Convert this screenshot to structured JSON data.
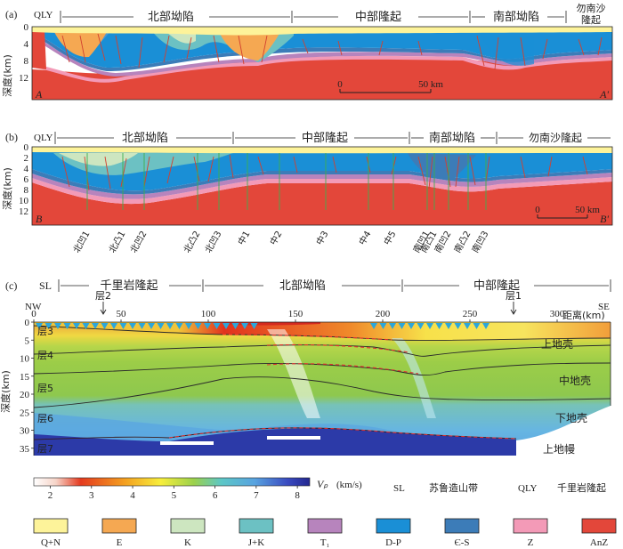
{
  "panel_a": {
    "label": "(a)",
    "tag_left": "QLY",
    "region_north": "北部坳陷",
    "region_central": "中部隆起",
    "region_south": "南部坳陷",
    "region_sandbar_1": "勿南沙",
    "region_sandbar_2": "隆起",
    "depth_label": "深度(km)",
    "y_ticks": [
      "0",
      "4",
      "8",
      "12"
    ],
    "scale_start": "0",
    "scale_end": "50 km",
    "point_start": "A",
    "point_end": "A'"
  },
  "panel_b": {
    "label": "(b)",
    "tag_left": "QLY",
    "region_north": "北部坳陷",
    "region_central": "中部隆起",
    "region_south": "南部坳陷",
    "region_sandbar": "勿南沙隆起",
    "depth_label": "深度(km)",
    "y_ticks": [
      "0",
      "2",
      "4",
      "6",
      "8",
      "10",
      "12"
    ],
    "scale_start": "0",
    "scale_end": "50 km",
    "point_start": "B",
    "point_end": "B'",
    "units": [
      "北凹1",
      "北凸1",
      "北凹2",
      "北凸2",
      "北凹3",
      "中1",
      "中2",
      "中3",
      "中4",
      "中5",
      "南凹1",
      "南凸1",
      "南凹2",
      "南凸2",
      "南凹3"
    ]
  },
  "panel_c": {
    "label": "(c)",
    "tag_left": "SL",
    "region_qianliyan": "千里岩隆起",
    "region_north": "北部坳陷",
    "region_central": "中部隆起",
    "marker_layer2": "层2",
    "marker_layer1": "层1",
    "nw": "NW",
    "se": "SE",
    "distance_ticks": [
      "0",
      "50",
      "100",
      "150",
      "200",
      "250",
      "300"
    ],
    "distance_label": "距离(km)",
    "depth_label": "深度(km)",
    "depth_ticks": [
      "0",
      "5",
      "10",
      "15",
      "20",
      "25",
      "30",
      "35"
    ],
    "layers": [
      "层3",
      "层4",
      "层5",
      "层6",
      "层7"
    ],
    "crust_upper": "上地壳",
    "crust_middle": "中地壳",
    "crust_lower": "下地壳",
    "mantle_upper": "上地幔"
  },
  "colorbar": {
    "ticks": [
      "2",
      "3",
      "4",
      "5",
      "6",
      "7",
      "8"
    ],
    "symbol": "Vₚ",
    "unit": "(km/s)",
    "abbr_sl": "SL",
    "abbr_sl_text": "苏鲁造山带",
    "abbr_qly": "QLY",
    "abbr_qly_text": "千里岩隆起"
  },
  "legend": [
    {
      "label": "Q+N",
      "color": "#fdf39a"
    },
    {
      "label": "E",
      "color": "#f5a852"
    },
    {
      "label": "K",
      "color": "#cde6c0"
    },
    {
      "label": "J+K",
      "color": "#6cc1c3"
    },
    {
      "label": "T₁",
      "color": "#b784bd"
    },
    {
      "label": "D-P",
      "color": "#1a8fd6"
    },
    {
      "label": "Є-S",
      "color": "#3c7cb8"
    },
    {
      "label": "Z",
      "color": "#f39ab7"
    },
    {
      "label": "AnZ",
      "color": "#e3473a"
    }
  ]
}
